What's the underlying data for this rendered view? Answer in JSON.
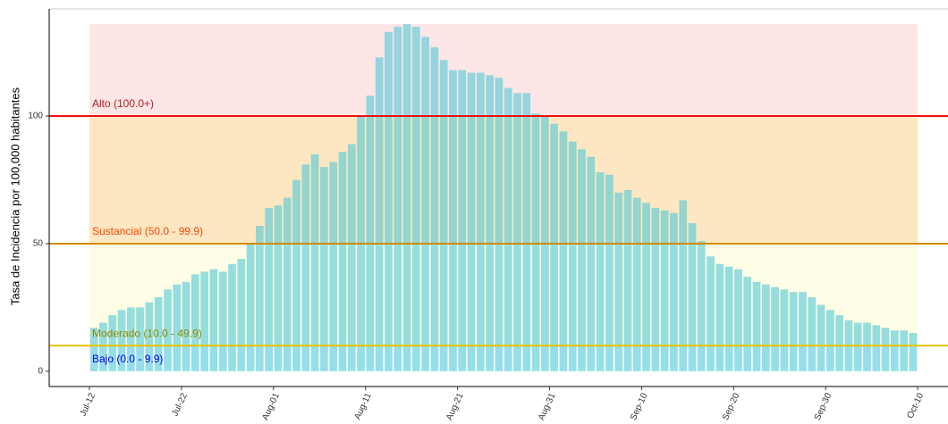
{
  "chart_data": {
    "type": "bar",
    "y_label": "Tasa de Incidencia por 100,000 habitantes",
    "categories": [
      "Jul-12",
      null,
      null,
      null,
      null,
      null,
      null,
      null,
      null,
      null,
      "Jul-22",
      null,
      null,
      null,
      null,
      null,
      null,
      null,
      null,
      null,
      "Aug-01",
      null,
      null,
      null,
      null,
      null,
      null,
      null,
      null,
      null,
      "Aug-11",
      null,
      null,
      null,
      null,
      null,
      null,
      null,
      null,
      null,
      "Aug-21",
      null,
      null,
      null,
      null,
      null,
      null,
      null,
      null,
      null,
      "Aug-31",
      null,
      null,
      null,
      null,
      null,
      null,
      null,
      null,
      null,
      "Sep-10",
      null,
      null,
      null,
      null,
      null,
      null,
      null,
      null,
      null,
      "Sep-20",
      null,
      null,
      null,
      null,
      null,
      null,
      null,
      null,
      null,
      "Sep-30",
      null,
      null,
      null,
      null,
      null,
      null,
      null,
      null,
      null,
      "Oct-10"
    ],
    "values": [
      17,
      19,
      22,
      24,
      25,
      25,
      27,
      29,
      32,
      34,
      35,
      38,
      39,
      40,
      39,
      42,
      44,
      50,
      57,
      64,
      65,
      68,
      75,
      81,
      85,
      80,
      82,
      86,
      89,
      100,
      108,
      123,
      133,
      135,
      136,
      135,
      131,
      127,
      122,
      118,
      118,
      117,
      117,
      116,
      115,
      111,
      109,
      109,
      101,
      100,
      97,
      94,
      90,
      87,
      84,
      78,
      77,
      70,
      71,
      68,
      66,
      64,
      63,
      62,
      67,
      58,
      51,
      45,
      42,
      41,
      40,
      37,
      35,
      34,
      33,
      32,
      31,
      31,
      29,
      26,
      24,
      22,
      20,
      19,
      19,
      18,
      17,
      16,
      16,
      15,
      null
    ],
    "color": "#4fc9d9",
    "ylim": [
      -6,
      142
    ],
    "yticks": [
      0,
      50,
      100
    ],
    "levels": [
      {
        "label": "Bajo (0.0 - 9.9)",
        "min": 0,
        "text_color": "#0000ee",
        "fill": "#ffffff"
      },
      {
        "label": "Moderado (10.0 - 49.9)",
        "min": 10,
        "text_color": "#8b8b00",
        "line_color": "#e8c400",
        "fill": "#fffde6"
      },
      {
        "label": "Sustancial (50.0 - 99.9)",
        "min": 50,
        "text_color": "#ff4500",
        "line_color": "#d08c00",
        "fill": "#fde7c2"
      },
      {
        "label": "Alto (100.0+)",
        "min": 100,
        "text_color": "#b22222",
        "line_color": "#ee1111",
        "fill": "#fde6e6"
      }
    ]
  }
}
